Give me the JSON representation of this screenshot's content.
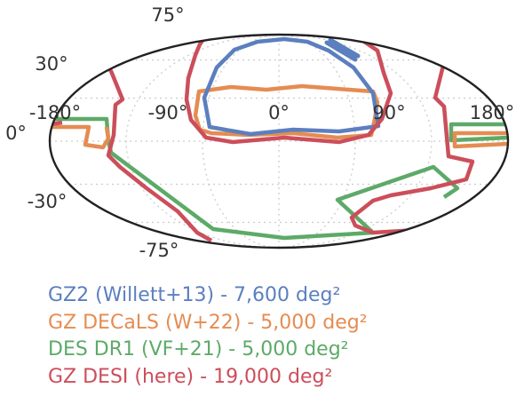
{
  "chart_data": {
    "type": "scatter",
    "projection": "Mollweide (equal-area, full sky)",
    "longitude_tick_labels": [
      "-180°",
      "-90°",
      "0°",
      "90°",
      "180°"
    ],
    "latitude_tick_labels": [
      {
        "text": "75°",
        "side": "top"
      },
      {
        "text": "30°",
        "side": "left"
      },
      {
        "text": "0°",
        "side": "left"
      },
      {
        "text": "-30°",
        "side": "left"
      },
      {
        "text": "-75°",
        "side": "bottom"
      }
    ],
    "grid": true,
    "legend_placement": "below",
    "colors": {
      "outline": "#222222",
      "grid": "#cccccc",
      "tick": "#333333"
    },
    "series": [
      {
        "name": "GZ2 (Willett+13) - 7,600 deg²",
        "color": "#5b7fbf",
        "footprints": [
          {
            "lon_range": [
              -90,
              90
            ],
            "lat_top": 55,
            "lat_bottom": -2,
            "shape": "cap"
          },
          {
            "segment": [
              [
                40,
                65
              ],
              [
                75,
                45
              ]
            ],
            "note": "stripe"
          }
        ]
      },
      {
        "name": "GZ DECaLS (W+22) - 5,000 deg²",
        "color": "#e58c52",
        "footprints": [
          {
            "lon_range": [
              -105,
              110
            ],
            "lat_top": 30,
            "lat_bottom": 0
          },
          {
            "lon_range": [
              -180,
              -115
            ],
            "lat_top": 5,
            "lat_bottom": -15
          }
        ]
      },
      {
        "name": "DES DR1 (VF+21) - 5,000 deg²",
        "color": "#5daa68",
        "footprints": [
          {
            "lon_range": [
              -180,
              -125
            ],
            "lat_top": 5,
            "lat_bottom": -30
          },
          {
            "lon_range": [
              115,
              180
            ],
            "lat_top": 5,
            "lat_bottom": -5
          }
        ]
      },
      {
        "name": "GZ DESI (here) - 19,000 deg²",
        "color": "#cc4e5b",
        "footprints": [
          {
            "lon_range": [
              -95,
              110
            ],
            "lat_top": 75,
            "lat_bottom": -10,
            "shape": "cap"
          },
          {
            "lon_range": [
              -180,
              -115
            ],
            "lat_top": 30,
            "lat_bottom": -75,
            "shape": "south-west"
          },
          {
            "lon_range": [
              100,
              180
            ],
            "lat_top": 35,
            "lat_bottom": -75,
            "shape": "south-east"
          }
        ]
      }
    ]
  }
}
